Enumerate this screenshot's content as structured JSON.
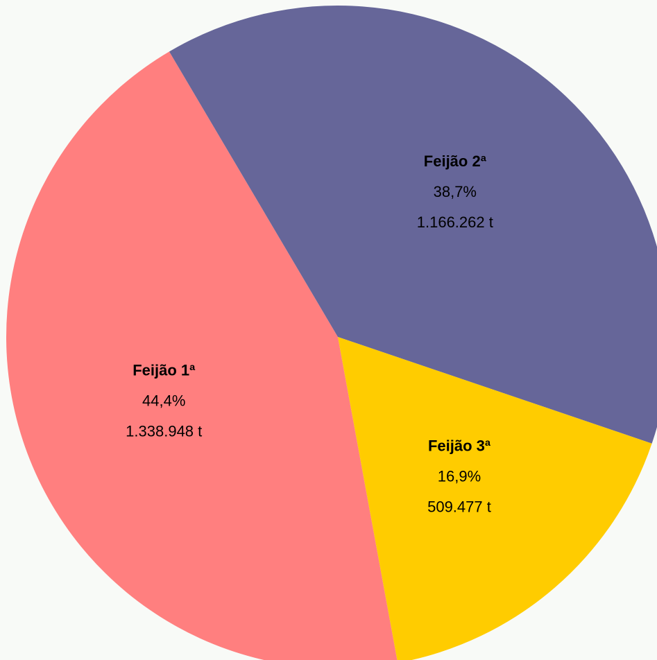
{
  "chart_data": {
    "type": "pie",
    "categories": [
      "Feijão 1ª",
      "Feijão 2ª",
      "Feijão 3ª"
    ],
    "values": [
      44.4,
      38.7,
      16.9
    ],
    "value_labels": [
      "44,4%",
      "38,7%",
      "16,9%"
    ],
    "tonnage": [
      1338948,
      1166262,
      509477
    ],
    "tonnage_labels": [
      "1.338.948 t",
      "1.166.262 t",
      "509.477 t"
    ],
    "colors": [
      "#ff7f7f",
      "#666699",
      "#ffcc00"
    ]
  }
}
